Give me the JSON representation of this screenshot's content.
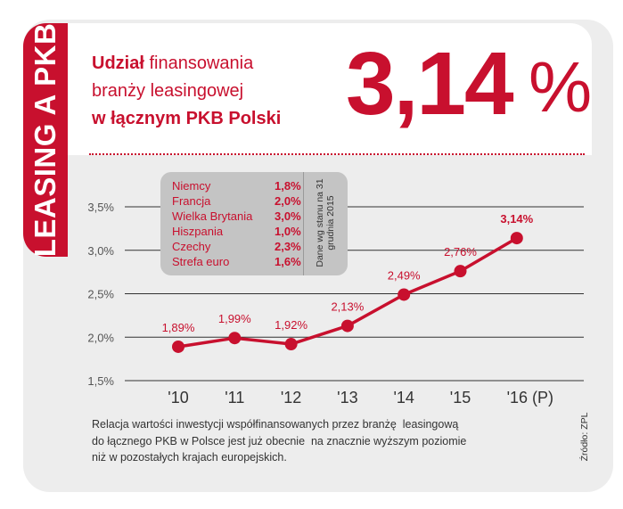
{
  "side_tab": "LEASING A PKB",
  "headline": {
    "line1_bold": "Udział",
    "line1_rest": " finansowania",
    "line2": "branży leasingowej",
    "line3": "w łącznym PKB Polski"
  },
  "big_value": "3,14",
  "big_unit": "%",
  "colors": {
    "accent": "#c8102e",
    "card": "#ededed",
    "legend_bg": "#c4c4c4",
    "grid": "#333333"
  },
  "legend": {
    "rows": [
      {
        "country": "Niemcy",
        "value": "1,8%"
      },
      {
        "country": "Francja",
        "value": "2,0%"
      },
      {
        "country": "Wielka Brytania",
        "value": "3,0%"
      },
      {
        "country": "Hiszpania",
        "value": "1,0%"
      },
      {
        "country": "Czechy",
        "value": "2,3%"
      },
      {
        "country": "Strefa euro",
        "value": "1,6%"
      }
    ],
    "note": "Dane wg stanu na 31 grudnia 2015"
  },
  "chart_data": {
    "type": "line",
    "categories": [
      "'10",
      "'11",
      "'12",
      "'13",
      "'14",
      "'15",
      "'16 (P)"
    ],
    "series": [
      {
        "values": [
          1.89,
          1.99,
          1.92,
          2.13,
          2.49,
          2.76,
          3.14
        ],
        "labels": [
          "1,89%",
          "1,99%",
          "1,92%",
          "2,13%",
          "2,49%",
          "2,76%",
          "3,14%"
        ]
      }
    ],
    "yticks": [
      1.5,
      2.0,
      2.5,
      3.0,
      3.5
    ],
    "ytick_labels": [
      "1,5%",
      "2,0%",
      "2,5%",
      "3,0%",
      "3,5%"
    ],
    "ylim": [
      1.5,
      3.5
    ],
    "grid": true
  },
  "footnote": {
    "line1": "Relacja wartości inwestycji współfinansowanych przez branżę  leasingową",
    "line2": "do łącznego PKB w Polsce jest już obecnie  na znacznie wyższym poziomie",
    "line3": "niż w pozostałych krajach europejskich."
  },
  "source": "Źródło: ZPL"
}
